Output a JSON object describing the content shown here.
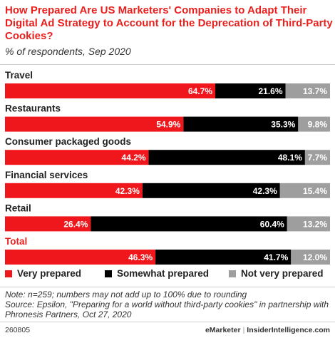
{
  "title": "How Prepared Are US Marketers' Companies to Adapt Their Digital Ad Strategy to Account for the Deprecation of Third-Party Cookies?",
  "subtitle": "% of respondents, Sep 2020",
  "chart_data": {
    "type": "bar",
    "orientation": "horizontal",
    "stacked": true,
    "categories": [
      "Travel",
      "Restaurants",
      "Consumer packaged goods",
      "Financial services",
      "Retail",
      "Total"
    ],
    "highlight_category": "Total",
    "series": [
      {
        "name": "Very prepared",
        "color": "#f0171c",
        "values": [
          64.7,
          54.9,
          44.2,
          42.3,
          26.4,
          46.3
        ],
        "labels": [
          "64.7%",
          "54.9%",
          "44.2%",
          "42.3%",
          "26.4%",
          "46.3%"
        ]
      },
      {
        "name": "Somewhat prepared",
        "color": "#000000",
        "values": [
          21.6,
          35.3,
          48.1,
          42.3,
          60.4,
          41.7
        ],
        "labels": [
          "21.6%",
          "35.3%",
          "48.1%",
          "42.3%",
          "60.4%",
          "41.7%"
        ]
      },
      {
        "name": "Not very prepared",
        "color": "#9e9e9e",
        "values": [
          13.7,
          9.8,
          7.7,
          15.4,
          13.2,
          12.0
        ],
        "labels": [
          "13.7%",
          "9.8%",
          "7.7%",
          "15.4%",
          "13.2%",
          "12.0%"
        ]
      }
    ],
    "xlim": [
      0,
      100
    ],
    "legend_position": "bottom",
    "grid": false
  },
  "colors": {
    "accent": "#e8211f",
    "total_label": "#e8211f"
  },
  "note": "Note: n=259; numbers may not add up to 100% due to rounding",
  "source": "Source: Epsilon, \"Preparing for a world without third-party cookies\" in partnership with Phronesis Partners, Oct 27, 2020",
  "chart_id": "260805",
  "brand": {
    "left": "eMarketer",
    "separator": "|",
    "right": "InsiderIntelligence.com"
  }
}
